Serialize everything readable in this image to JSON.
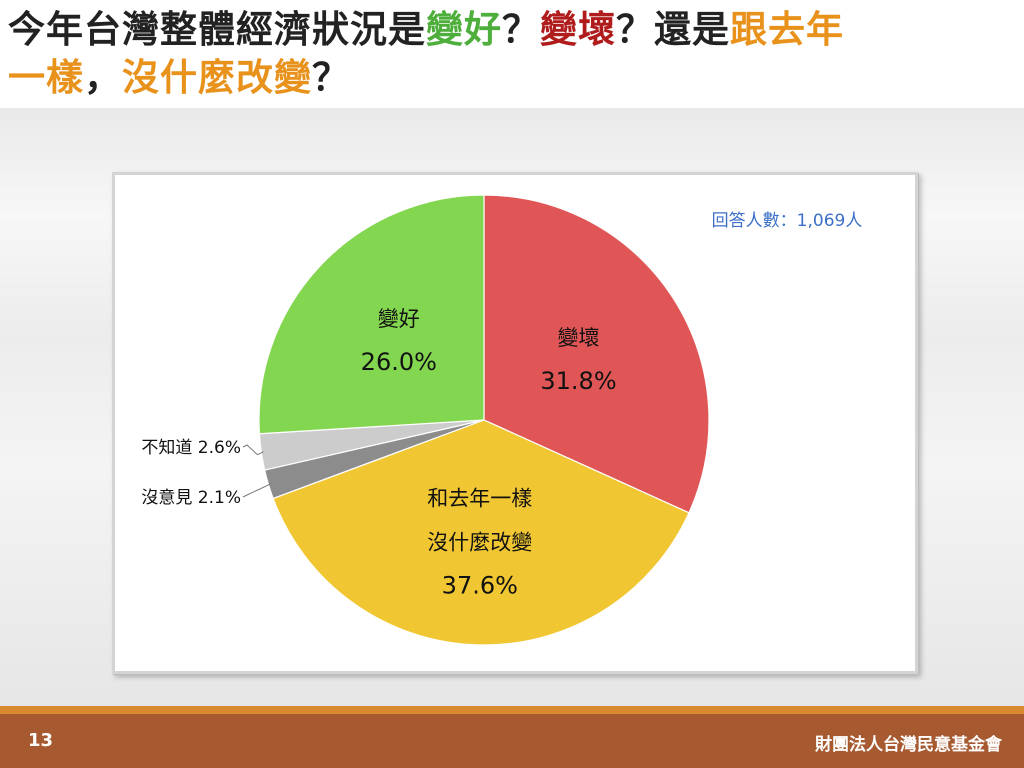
{
  "title": {
    "part1": "今年台灣整體經濟狀況是",
    "good": "變好",
    "q1": "？",
    "bad": "變壞",
    "q2": "？還是",
    "same_a": "跟去年",
    "same_b": "一樣",
    "comma": "，",
    "same_c": "沒什麼改變",
    "q3": "？",
    "colors": {
      "text": "#222222",
      "good": "#4eae3c",
      "bad": "#b01c1c",
      "same": "#e8921c"
    }
  },
  "footer": {
    "page_number": "13",
    "organization": "財團法人台灣民意基金會"
  },
  "chart_data": {
    "type": "pie",
    "annotation": "回答人數：1,069人",
    "slices": [
      {
        "label": "變壞",
        "value": 31.8,
        "value_label": "31.8%",
        "color": "#e05656"
      },
      {
        "label": "和去年一樣 沒什麼改變",
        "label_lines": [
          "和去年一樣",
          "沒什麼改變"
        ],
        "value": 37.6,
        "value_label": "37.6%",
        "color": "#f0c733"
      },
      {
        "label": "沒意見",
        "value": 2.1,
        "value_label": "2.1%",
        "color": "#8c8c8c"
      },
      {
        "label": "不知道",
        "value": 2.6,
        "value_label": "2.6%",
        "color": "#cccccc"
      },
      {
        "label": "變好",
        "value": 26.0,
        "value_label": "26.0%",
        "color": "#83d64f"
      }
    ],
    "callouts": [
      {
        "text": "不知道 2.6%"
      },
      {
        "text": "沒意見 2.1%"
      }
    ]
  }
}
